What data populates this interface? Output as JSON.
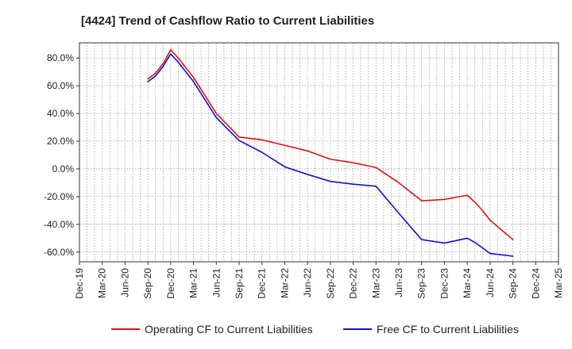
{
  "chart_data": {
    "type": "line",
    "title": "[4424]  Trend of Cashflow Ratio to Current Liabilities",
    "xlabel": "",
    "ylabel": "",
    "x_ticks": [
      "Dec-19",
      "Mar-20",
      "Jun-20",
      "Sep-20",
      "Dec-20",
      "Mar-21",
      "Jun-21",
      "Sep-21",
      "Dec-21",
      "Mar-22",
      "Jun-22",
      "Sep-22",
      "Dec-22",
      "Mar-23",
      "Jun-23",
      "Sep-23",
      "Dec-23",
      "Mar-24",
      "Jun-24",
      "Sep-24",
      "Dec-24",
      "Mar-25"
    ],
    "y_ticks": [
      "80.0%",
      "60.0%",
      "40.0%",
      "20.0%",
      "0.0%",
      "-20.0%",
      "-40.0%",
      "-60.0%"
    ],
    "y_tick_values": [
      80,
      60,
      40,
      20,
      0,
      -20,
      -40,
      -60
    ],
    "ylim": [
      -67,
      91
    ],
    "grid": true,
    "legend_position": "bottom-center",
    "series": [
      {
        "name": "Operating CF to Current Liabilities",
        "color": "#dd1111",
        "x": [
          "Sep-20",
          "Oct-20",
          "Nov-20",
          "Dec-20",
          "Jan-21",
          "Feb-21",
          "Mar-21",
          "Jun-21",
          "Sep-21",
          "Dec-21",
          "Mar-22",
          "Jun-22",
          "Sep-22",
          "Dec-22",
          "Mar-23",
          "Jun-23",
          "Sep-23",
          "Dec-23",
          "Mar-24",
          "Apr-24",
          "May-24",
          "Jun-24",
          "Sep-24"
        ],
        "values": [
          65,
          69,
          76,
          86,
          80,
          73,
          66,
          40,
          23,
          21,
          17,
          13,
          7,
          4.5,
          1,
          -10,
          -23,
          -22,
          -19,
          -24,
          -30,
          -37,
          -51
        ]
      },
      {
        "name": "Free CF to Current Liabilities",
        "color": "#1111cc",
        "x": [
          "Sep-20",
          "Oct-20",
          "Nov-20",
          "Dec-20",
          "Jan-21",
          "Feb-21",
          "Mar-21",
          "Jun-21",
          "Sep-21",
          "Dec-21",
          "Mar-22",
          "Jun-22",
          "Sep-22",
          "Dec-22",
          "Mar-23",
          "Jun-23",
          "Sep-23",
          "Dec-23",
          "Mar-24",
          "Apr-24",
          "May-24",
          "Jun-24",
          "Sep-24"
        ],
        "values": [
          63,
          67,
          74,
          83,
          77,
          70,
          63,
          37,
          20.5,
          12,
          1.5,
          -4,
          -9,
          -11,
          -12.5,
          -32,
          -51,
          -53.5,
          -50,
          -53,
          -57,
          -61,
          -63
        ]
      }
    ]
  }
}
